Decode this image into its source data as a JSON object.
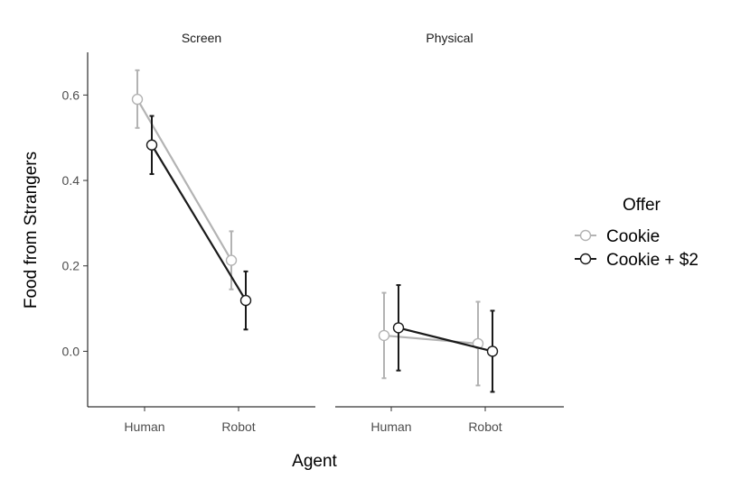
{
  "chart_data": {
    "type": "line",
    "facets": [
      "Screen",
      "Physical"
    ],
    "categories": [
      "Human",
      "Robot"
    ],
    "xlabel": "Agent",
    "ylabel": "Food from Strangers",
    "ylim": [
      -0.13,
      0.7
    ],
    "yticks": [
      0.0,
      0.2,
      0.4,
      0.6
    ],
    "ytick_labels": [
      "0.0",
      "0.2",
      "0.4",
      "0.6"
    ],
    "grid": false,
    "legend_title": "Offer",
    "legend_position": "right",
    "series": [
      {
        "name": "Cookie",
        "color": "#b3b3b3",
        "facets": {
          "Screen": [
            {
              "x": "Human",
              "y": 0.59,
              "lo": 0.523,
              "hi": 0.658
            },
            {
              "x": "Robot",
              "y": 0.213,
              "lo": 0.145,
              "hi": 0.281
            }
          ],
          "Physical": [
            {
              "x": "Human",
              "y": 0.037,
              "lo": -0.063,
              "hi": 0.137
            },
            {
              "x": "Robot",
              "y": 0.018,
              "lo": -0.08,
              "hi": 0.116
            }
          ]
        }
      },
      {
        "name": "Cookie + $2",
        "color": "#1a1a1a",
        "facets": {
          "Screen": [
            {
              "x": "Human",
              "y": 0.483,
              "lo": 0.415,
              "hi": 0.551
            },
            {
              "x": "Robot",
              "y": 0.119,
              "lo": 0.051,
              "hi": 0.187
            }
          ],
          "Physical": [
            {
              "x": "Human",
              "y": 0.055,
              "lo": -0.045,
              "hi": 0.155
            },
            {
              "x": "Robot",
              "y": 0.0,
              "lo": -0.095,
              "hi": 0.095
            }
          ]
        }
      }
    ]
  }
}
